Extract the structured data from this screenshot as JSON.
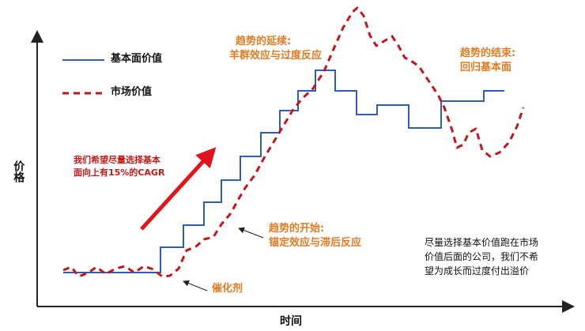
{
  "axes": {
    "y_label": "价格",
    "x_label": "时间"
  },
  "legend": {
    "fundamental_label": "基本面价值",
    "market_label": "市场价值"
  },
  "colors": {
    "fundamental": "#2F5FB5",
    "market": "#C0181A",
    "annotation_orange": "#E07B22",
    "annotation_red": "#C21A1A",
    "axis": "#222222"
  },
  "annotations": {
    "trend_continue": {
      "line1": "趋势的延续:",
      "line2": "羊群效应与过度反应"
    },
    "trend_end": {
      "line1": "趋势的结束:",
      "line2": "回归基本面"
    },
    "growth_goal": {
      "line1": "我们希望尽量选择基本",
      "line2": "面向上有15%的CAGR"
    },
    "trend_start": {
      "line1": "趋势的开始:",
      "line2": "锚定效应与滞后反应"
    },
    "catalyst": "催化剂",
    "strategy": {
      "line1": "尽量选择基本价值跑在市场",
      "line2": "价值后面的公司，我们不希",
      "line3": "望为成长而过度付出溢价"
    }
  }
}
